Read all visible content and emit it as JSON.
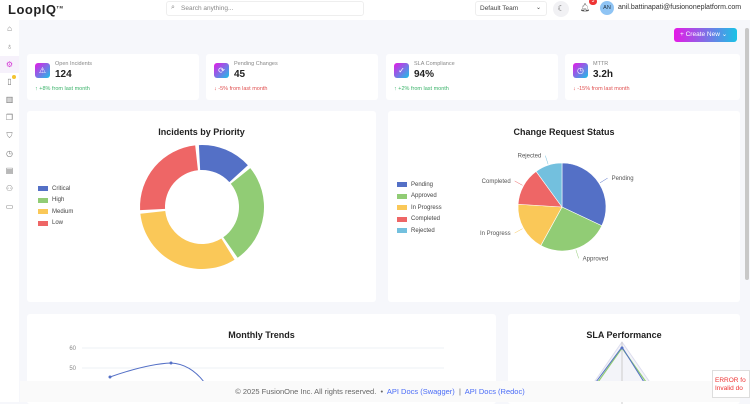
{
  "header": {
    "logo": "LoopIQ",
    "search_placeholder": "Search anything...",
    "team": "Default Team",
    "notifications": "3",
    "avatar": "AN",
    "email": "anil.battinapati@fusiononeplatform.com"
  },
  "sidebar": {
    "icons": [
      "home-icon",
      "lightbulb-icon",
      "gear-icon",
      "book-icon",
      "columns-icon",
      "copy-icon",
      "shield-icon",
      "clock-icon",
      "report-icon",
      "users-icon",
      "document-icon"
    ]
  },
  "create_label": "+ Create New ⌄",
  "kpis": [
    {
      "label": "Open Incidents",
      "value": "124",
      "trend": "↑ +8% from last month",
      "dir": "up",
      "icon": "warning-icon"
    },
    {
      "label": "Pending Changes",
      "value": "45",
      "trend": "↓ -5% from last month",
      "dir": "down",
      "icon": "refresh-icon"
    },
    {
      "label": "SLA Compliance",
      "value": "94%",
      "trend": "↑ +2% from last month",
      "dir": "up",
      "icon": "check-circle-icon"
    },
    {
      "label": "MTTR",
      "value": "3.2h",
      "trend": "↓ -15% from last month",
      "dir": "down",
      "icon": "clock-icon"
    }
  ],
  "chart_data": [
    {
      "type": "pie",
      "variant": "donut",
      "title": "Incidents by Priority",
      "legend": "left",
      "categories": [
        "Critical",
        "High",
        "Medium",
        "Low"
      ],
      "values": [
        15,
        27,
        33,
        25
      ],
      "colors": [
        "#5470c6",
        "#91cc75",
        "#fac858",
        "#ee6666"
      ]
    },
    {
      "type": "pie",
      "title": "Change Request Status",
      "legend": "left",
      "categories": [
        "Pending",
        "Approved",
        "In Progress",
        "Completed",
        "Rejected"
      ],
      "values": [
        32,
        26,
        18,
        14,
        10
      ],
      "colors": [
        "#5470c6",
        "#91cc75",
        "#fac858",
        "#ee6666",
        "#73c0de"
      ]
    },
    {
      "type": "line",
      "title": "Monthly Trends",
      "yticks": [
        "60",
        "50"
      ]
    },
    {
      "type": "radar",
      "title": "SLA Performance"
    }
  ],
  "footer": {
    "copyright": "© 2025 FusionOne Inc. All rights reserved.",
    "sep": "•",
    "swagger": "API Docs (Swagger)",
    "bar": "|",
    "redoc": "API Docs (Redoc)"
  },
  "error": {
    "line1": "ERROR fo",
    "line2": "Invalid do"
  }
}
